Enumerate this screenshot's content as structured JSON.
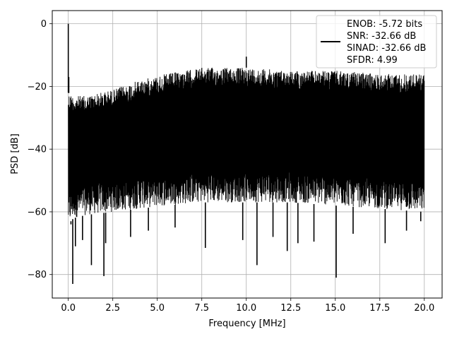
{
  "chart_data": {
    "type": "line",
    "title": "",
    "xlabel": "Frequency [MHz]",
    "ylabel": "PSD [dB]",
    "xlim": [
      -0.9,
      21.0
    ],
    "ylim": [
      -87.5,
      4.2
    ],
    "xticks": [
      0.0,
      2.5,
      5.0,
      7.5,
      10.0,
      12.5,
      15.0,
      17.5,
      20.0
    ],
    "xtick_labels": [
      "0.0",
      "2.5",
      "5.0",
      "7.5",
      "10.0",
      "12.5",
      "15.0",
      "17.5",
      "20.0"
    ],
    "yticks": [
      0,
      -20,
      -40,
      -60,
      -80
    ],
    "ytick_labels": [
      "0",
      "−20",
      "−40",
      "−60",
      "−80"
    ],
    "grid": true,
    "legend_position": "top-right",
    "series_color": "#000000",
    "series": [
      {
        "name": "ENOB: -5.72 bits\nSNR: -32.66 dB\nSINAD: -32.66 dB\nSFDR: 4.99",
        "legend_lines": [
          "ENOB: -5.72 bits",
          "SNR: -32.66 dB",
          "SINAD: -32.66 dB",
          "SFDR: 4.99"
        ],
        "x_range": [
          0.0,
          20.0
        ],
        "envelope_x": [
          0.0,
          0.3,
          1.0,
          2.5,
          4.0,
          5.5,
          7.5,
          10.0,
          12.5,
          15.0,
          17.5,
          20.0
        ],
        "envelope_upper": [
          -22,
          -23,
          -23,
          -21,
          -18,
          -16,
          -14,
          -14,
          -15,
          -15,
          -16,
          -16
        ],
        "envelope_lower": [
          -64,
          -62,
          -61,
          -60,
          -59,
          -58,
          -57,
          -57,
          -57,
          -58,
          -59,
          -60
        ],
        "spikes": [
          {
            "x": 0.0,
            "y": 0.0
          },
          {
            "x": 0.03,
            "y": -17.0
          },
          {
            "x": 0.15,
            "y": -64.0
          },
          {
            "x": 0.25,
            "y": -83.0
          },
          {
            "x": 0.4,
            "y": -71.0
          },
          {
            "x": 0.8,
            "y": -69.0
          },
          {
            "x": 1.3,
            "y": -77.0
          },
          {
            "x": 2.0,
            "y": -80.5
          },
          {
            "x": 2.1,
            "y": -70.0
          },
          {
            "x": 3.5,
            "y": -68.0
          },
          {
            "x": 4.5,
            "y": -66.0
          },
          {
            "x": 6.0,
            "y": -65.0
          },
          {
            "x": 7.7,
            "y": -71.5
          },
          {
            "x": 9.8,
            "y": -69.0
          },
          {
            "x": 10.0,
            "y": -10.5
          },
          {
            "x": 10.6,
            "y": -77.0
          },
          {
            "x": 11.5,
            "y": -68.0
          },
          {
            "x": 12.3,
            "y": -72.5
          },
          {
            "x": 12.9,
            "y": -70.0
          },
          {
            "x": 13.8,
            "y": -69.5
          },
          {
            "x": 15.05,
            "y": -81.0
          },
          {
            "x": 16.0,
            "y": -67.0
          },
          {
            "x": 17.8,
            "y": -70.0
          },
          {
            "x": 19.0,
            "y": -66.0
          },
          {
            "x": 19.8,
            "y": -63.0
          }
        ]
      }
    ]
  }
}
